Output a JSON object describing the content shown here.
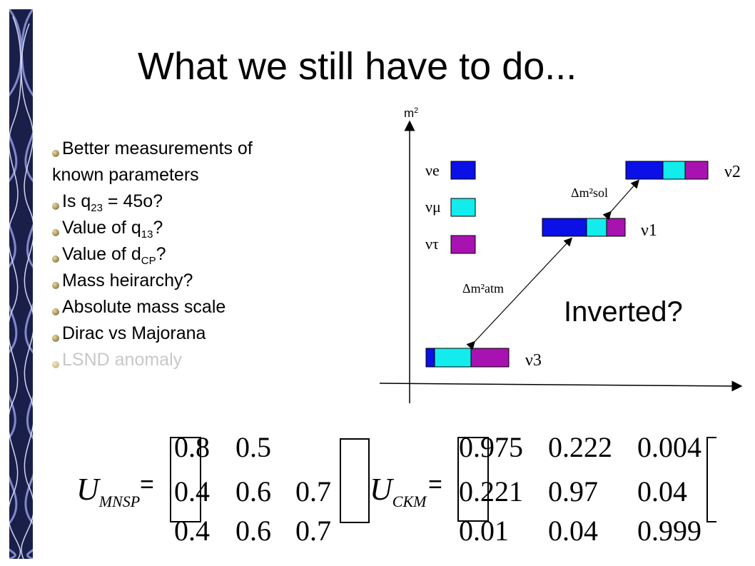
{
  "slide": {
    "title": "What we still have to do...",
    "bullets": [
      {
        "pre": "Better measurements of",
        "sub": "",
        "post": "",
        "faded": false,
        "cont": false
      },
      {
        "pre": "known parameters",
        "sub": "",
        "post": "",
        "faded": false,
        "cont": true
      },
      {
        "pre": "Is q",
        "sub": "23",
        "post": " = 45o?",
        "faded": false,
        "cont": false
      },
      {
        "pre": "Value of q",
        "sub": "13",
        "post": "?",
        "faded": false,
        "cont": false
      },
      {
        "pre": "Value of d",
        "sub": "CP",
        "post": "?",
        "faded": false,
        "cont": false
      },
      {
        "pre": "Mass heirarchy?",
        "sub": "",
        "post": "",
        "faded": false,
        "cont": false
      },
      {
        "pre": "Absolute mass scale",
        "sub": "",
        "post": "",
        "faded": false,
        "cont": false
      },
      {
        "pre": "Dirac vs Majorana",
        "sub": "",
        "post": "",
        "faded": false,
        "cont": false
      },
      {
        "pre": "LSND anomaly",
        "sub": "",
        "post": "",
        "faded": true,
        "cont": false
      }
    ],
    "inverted_label": "Inverted?"
  },
  "diagram": {
    "axis_label": "m",
    "axis_label_sup": "2",
    "flavor_labels": [
      "νe",
      "νμ",
      "ντ"
    ],
    "mass_labels": [
      "ν2",
      "ν1",
      "ν3"
    ],
    "dm_sol": "Δm²sol",
    "dm_atm": "Δm²atm",
    "colors": {
      "nu_e": "#0a10e6",
      "nu_mu": "#12ecec",
      "nu_tau": "#a812b0"
    }
  },
  "matrices": {
    "mnsp_symbol": "U",
    "mnsp_sub": "MNSP",
    "ckm_symbol": "U",
    "ckm_sub": "CKM",
    "equals": "=",
    "mnsp_rows": [
      [
        "0.8",
        "0.5",
        ""
      ],
      [
        "0.4",
        "0.6",
        "0.7"
      ],
      [
        "0.4",
        "0.6",
        "0.7"
      ]
    ],
    "ckm_rows": [
      [
        "0.975",
        "0.222",
        "0.004"
      ],
      [
        "0.221",
        "0.97",
        "0.04"
      ],
      [
        "0.01",
        "0.04",
        "0.999"
      ]
    ]
  }
}
